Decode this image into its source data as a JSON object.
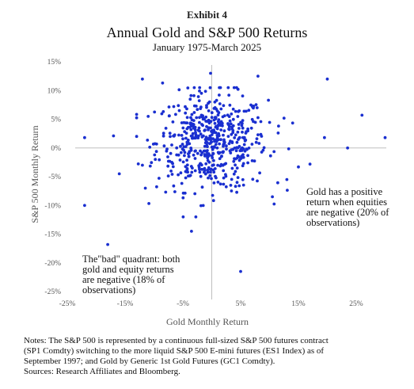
{
  "header": {
    "exhibit": "Exhibit 4",
    "title": "Annual Gold and S&P 500 Returns",
    "subtitle": "January 1975-March 2025"
  },
  "chart_data": {
    "type": "scatter",
    "title": "Annual Gold and S&P 500 Returns",
    "subtitle": "January 1975-March 2025",
    "xlabel": "Gold Monthly Return",
    "ylabel": "S&P 500 Monthly Return",
    "xlim": [
      -25,
      30
    ],
    "ylim": [
      -25,
      16
    ],
    "x_ticks": [
      -25,
      -15,
      -5,
      5,
      15,
      25
    ],
    "x_tick_labels": [
      "-25%",
      "-15%",
      "-5%",
      "5%",
      "15%",
      "25%"
    ],
    "y_ticks": [
      15,
      10,
      5,
      0,
      -5,
      -10,
      -15,
      -20,
      -25
    ],
    "y_tick_labels": [
      "15%",
      "10%",
      "5%",
      "0%",
      "-5%",
      "-10%",
      "-15%",
      "-20%",
      "-25%"
    ],
    "marker_color": "#1a2fd0",
    "axes_color": "#bfbfbf",
    "annotations": [
      {
        "lines": [
          "Gold has a positive",
          "return when equities",
          "are negative (20% of",
          "observations)"
        ]
      },
      {
        "lines": [
          "The\"bad\" quadrant: both",
          "gold and equity returns",
          "are negative (18% of",
          "observations)"
        ]
      }
    ],
    "outliers": [
      [
        -12,
        12
      ],
      [
        -8.5,
        11.3
      ],
      [
        -0.2,
        13
      ],
      [
        8,
        12.5
      ],
      [
        20,
        12
      ],
      [
        26,
        5.7
      ],
      [
        30,
        1.8
      ],
      [
        23.5,
        0
      ],
      [
        19.5,
        1.8
      ],
      [
        -22,
        1.8
      ],
      [
        -17,
        2.1
      ],
      [
        -16,
        -4.5
      ],
      [
        -12,
        -3
      ],
      [
        -11.5,
        -7
      ],
      [
        -22,
        -10
      ],
      [
        -18,
        -16.8
      ],
      [
        -3.5,
        -14.5
      ],
      [
        5,
        -21.5
      ],
      [
        17,
        -2.8
      ],
      [
        13,
        -5.5
      ],
      [
        15,
        -3.3
      ],
      [
        11.5,
        2.6
      ],
      [
        12.5,
        5.2
      ],
      [
        10.5,
        -8.5
      ]
    ],
    "cluster": {
      "count": 540,
      "x_mean": 0,
      "x_sd": 4.8,
      "y_mean": 1,
      "y_sd": 4.2
    }
  },
  "notes": {
    "line1": "Notes: The S&P 500 is represented by a continuous full-sized S&P 500 futures contract",
    "line2": "(SP1 Comdty) switching to the more liquid S&P 500 E-mini futures (ES1 Index) as of",
    "line3": "September 1997; and Gold by Generic 1st Gold Futures (GC1 Comdty).",
    "line4": "Sources: Research Affiliates and Bloomberg."
  }
}
